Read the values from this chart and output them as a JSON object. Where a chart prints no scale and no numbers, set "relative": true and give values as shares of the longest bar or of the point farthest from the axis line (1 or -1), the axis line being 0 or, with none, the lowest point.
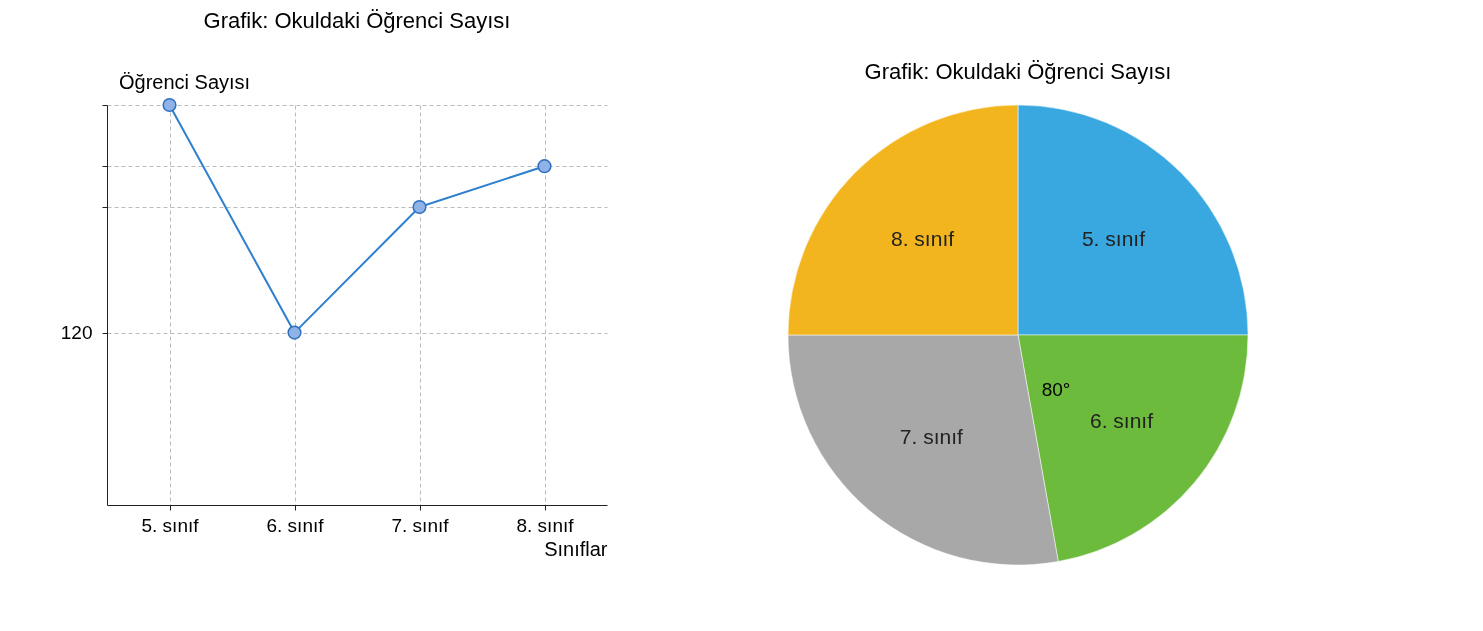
{
  "chart_data": [
    {
      "type": "line",
      "title": "Grafik: Okuldaki Öğrenci Sayısı",
      "xlabel": "Sınıflar",
      "ylabel": "Öğrenci Sayısı",
      "categories": [
        "5. sınıf",
        "6. sınıf",
        "7. sınıf",
        "8. sınıf"
      ],
      "relative": true,
      "series": [
        {
          "color": "#2f7fcf",
          "values": [
            1,
            0.431,
            0.745,
            0.847
          ]
        }
      ],
      "annotations": [
        "120"
      ],
      "grid": true,
      "marker": "circle"
    },
    {
      "type": "pie",
      "title": "Grafik: Okuldaki Öğrenci Sayısı",
      "categories": [
        "5. sınıf",
        "6. sınıf",
        "7. sınıf",
        "8. sınıf"
      ],
      "values": [
        25,
        22.2,
        27.8,
        25
      ],
      "colors": [
        "#3aa8e0",
        "#6cbb3c",
        "#a8a8a8",
        "#f2b51e"
      ],
      "annotations": [
        "80°"
      ],
      "legend": false
    }
  ]
}
